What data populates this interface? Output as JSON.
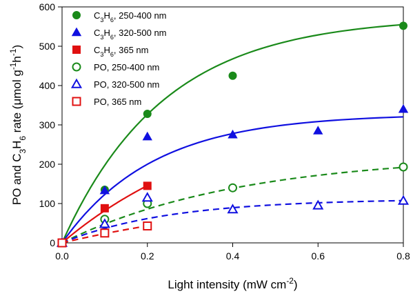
{
  "chart_data": {
    "type": "scatter",
    "xlabel": {
      "base": "Light intensity (mW cm",
      "sup": "-2",
      "tail": ")"
    },
    "ylabel": {
      "parts": [
        {
          "t": "PO and C",
          "s": ""
        },
        {
          "t": "3",
          "s": "sub"
        },
        {
          "t": "H",
          "s": ""
        },
        {
          "t": "6",
          "s": "sub"
        },
        {
          "t": " rate (μmol g",
          "s": ""
        },
        {
          "t": "-1",
          "s": "sup"
        },
        {
          "t": "h",
          "s": ""
        },
        {
          "t": "-1",
          "s": "sup"
        },
        {
          "t": ")",
          "s": ""
        }
      ]
    },
    "xlim": [
      0,
      0.8
    ],
    "ylim": [
      0,
      600
    ],
    "x_ticks": [
      "0.0",
      "0.2",
      "0.4",
      "0.6",
      "0.8"
    ],
    "y_ticks": [
      "0",
      "100",
      "200",
      "300",
      "400",
      "500",
      "600"
    ],
    "grid": false,
    "legend_position": "top-left",
    "series": [
      {
        "name": "C3H6, 250-400 nm",
        "legend_parts": [
          {
            "t": "C",
            "s": ""
          },
          {
            "t": "3",
            "s": "sub"
          },
          {
            "t": "H",
            "s": ""
          },
          {
            "t": "6",
            "s": "sub"
          },
          {
            "t": ", 250-400 nm",
            "s": ""
          }
        ],
        "color": "#1a8a1a",
        "marker": "circle",
        "filled": true,
        "line_style": "solid",
        "points": [
          [
            0,
            0
          ],
          [
            0.1,
            135
          ],
          [
            0.2,
            328
          ],
          [
            0.4,
            425
          ],
          [
            0.8,
            552
          ]
        ],
        "fit": {
          "a": 575,
          "b": 4.2
        }
      },
      {
        "name": "C3H6, 320-500 nm",
        "legend_parts": [
          {
            "t": "C",
            "s": ""
          },
          {
            "t": "3",
            "s": "sub"
          },
          {
            "t": "H",
            "s": ""
          },
          {
            "t": "6",
            "s": "sub"
          },
          {
            "t": ", 320-500 nm",
            "s": ""
          }
        ],
        "color": "#1010e0",
        "marker": "triangle",
        "filled": true,
        "line_style": "solid",
        "points": [
          [
            0,
            0
          ],
          [
            0.1,
            133
          ],
          [
            0.2,
            270
          ],
          [
            0.4,
            275
          ],
          [
            0.6,
            285
          ],
          [
            0.8,
            340
          ]
        ],
        "fit": {
          "a": 328,
          "b": 4.7
        }
      },
      {
        "name": "C3H6, 365 nm",
        "legend_parts": [
          {
            "t": "C",
            "s": ""
          },
          {
            "t": "3",
            "s": "sub"
          },
          {
            "t": "H",
            "s": ""
          },
          {
            "t": "6",
            "s": "sub"
          },
          {
            "t": ", 365 nm",
            "s": ""
          }
        ],
        "color": "#e01010",
        "marker": "square",
        "filled": true,
        "line_style": "solid",
        "points": [
          [
            0,
            0
          ],
          [
            0.1,
            88
          ],
          [
            0.2,
            145
          ]
        ],
        "fit": {
          "a": 370,
          "b": 2.5
        }
      },
      {
        "name": "PO, 250-400 nm",
        "legend_parts": [
          {
            "t": "PO, 250-400 nm",
            "s": ""
          }
        ],
        "color": "#1a8a1a",
        "marker": "circle",
        "filled": false,
        "line_style": "dashed",
        "points": [
          [
            0,
            0
          ],
          [
            0.1,
            60
          ],
          [
            0.2,
            100
          ],
          [
            0.4,
            140
          ],
          [
            0.8,
            193
          ]
        ],
        "fit": {
          "a": 225,
          "b": 2.4
        }
      },
      {
        "name": "PO, 320-500 nm",
        "legend_parts": [
          {
            "t": "PO, 320-500 nm",
            "s": ""
          }
        ],
        "color": "#1010e0",
        "marker": "triangle",
        "filled": false,
        "line_style": "dashed",
        "points": [
          [
            0,
            0
          ],
          [
            0.1,
            48
          ],
          [
            0.2,
            115
          ],
          [
            0.4,
            85
          ],
          [
            0.6,
            95
          ],
          [
            0.8,
            107
          ]
        ],
        "fit": {
          "a": 112,
          "b": 4.0
        }
      },
      {
        "name": "PO, 365 nm",
        "legend_parts": [
          {
            "t": "PO, 365 nm",
            "s": ""
          }
        ],
        "color": "#e01010",
        "marker": "square",
        "filled": false,
        "line_style": "dashed",
        "points": [
          [
            0,
            0
          ],
          [
            0.1,
            25
          ],
          [
            0.2,
            43
          ]
        ],
        "fit": {
          "a": 150,
          "b": 1.7
        }
      }
    ]
  }
}
